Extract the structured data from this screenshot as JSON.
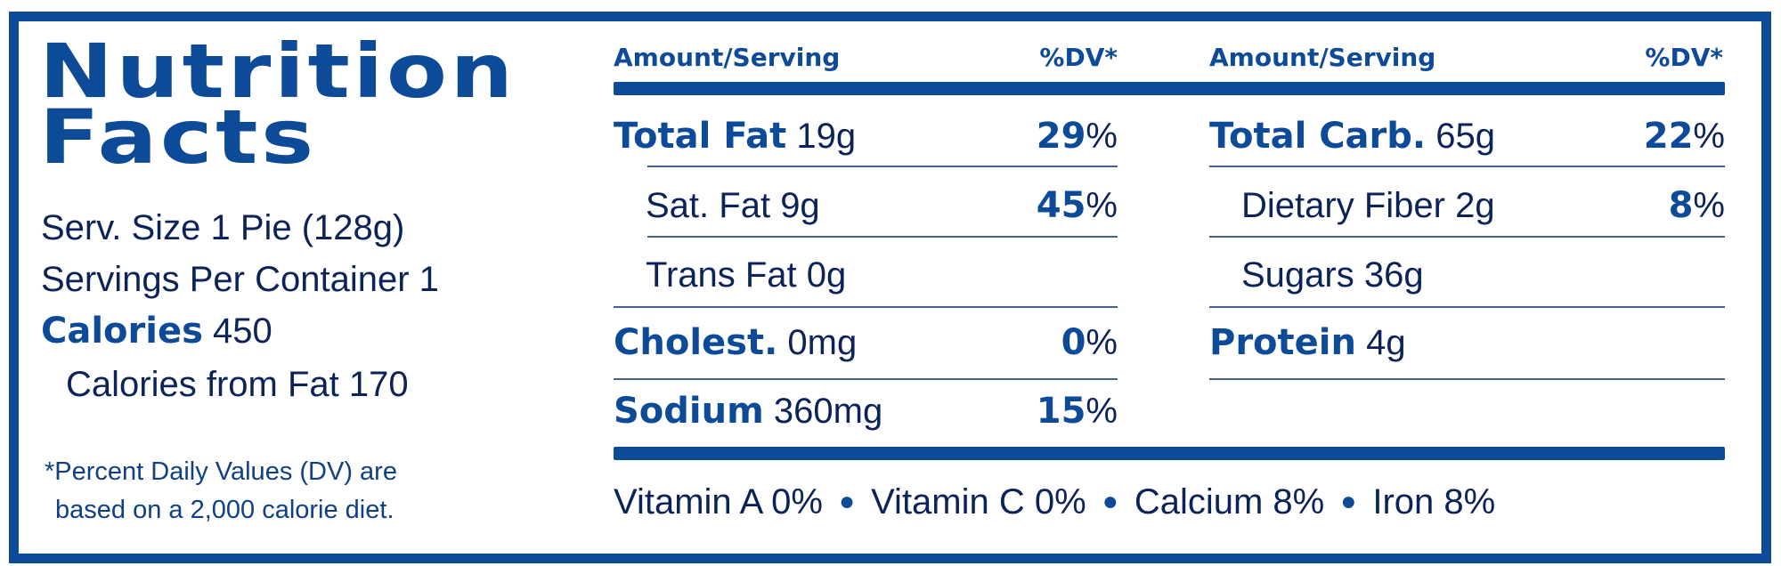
{
  "title": {
    "line1": "Nutrition",
    "line2": "Facts"
  },
  "serving": {
    "size_label": "Serv. Size",
    "size_value": "1 Pie (128g)",
    "per_container_label": "Servings Per Container",
    "per_container_value": "1",
    "calories_label": "Calories",
    "calories_value": "450",
    "calories_fat_label": "Calories from Fat",
    "calories_fat_value": "170"
  },
  "footnote": {
    "line1": "*Percent Daily Values (DV) are",
    "line2": "based on a 2,000 calorie diet."
  },
  "headers": {
    "amount": "Amount/Serving",
    "dv": "%DV*"
  },
  "left_rows": [
    {
      "label": "Total Fat",
      "amount": "19g",
      "dv": "29",
      "bold": true
    },
    {
      "label": "Sat. Fat",
      "amount": "9g",
      "dv": "45",
      "bold": false
    },
    {
      "label": "Trans Fat",
      "amount": "0g",
      "dv": "",
      "bold": false
    },
    {
      "label": "Cholest.",
      "amount": "0mg",
      "dv": "0",
      "bold": true
    },
    {
      "label": "Sodium",
      "amount": "360mg",
      "dv": "15",
      "bold": true
    }
  ],
  "right_rows": [
    {
      "label": "Total Carb.",
      "amount": "65g",
      "dv": "22",
      "bold": true
    },
    {
      "label": "Dietary Fiber",
      "amount": "2g",
      "dv": "8",
      "bold": false
    },
    {
      "label": "Sugars",
      "amount": "36g",
      "dv": "",
      "bold": false
    },
    {
      "label": "Protein",
      "amount": "4g",
      "dv": "",
      "bold": true
    }
  ],
  "percent_sign": "%",
  "vitamins": [
    "Vitamin A 0%",
    "Vitamin C 0%",
    "Calcium 8%",
    "Iron 8%"
  ],
  "colors": {
    "brand": "#0d4a98",
    "text": "#0b2358"
  }
}
